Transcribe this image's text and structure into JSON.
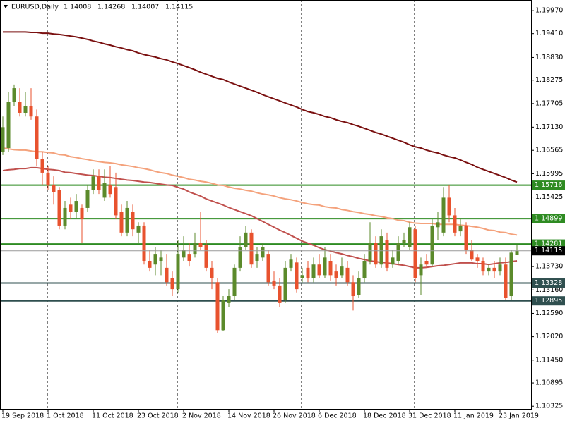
{
  "chart_data": {
    "type": "candlestick",
    "title": "EURUSD,Daily",
    "categories": [
      "19 Sep 2018",
      null,
      null,
      null,
      null,
      null,
      null,
      null,
      "1 Oct 2018",
      null,
      null,
      null,
      null,
      null,
      null,
      null,
      "11 Oct 2018",
      null,
      null,
      null,
      null,
      null,
      null,
      null,
      "23 Oct 2018",
      null,
      null,
      null,
      null,
      null,
      null,
      null,
      "2 Nov 2018",
      null,
      null,
      null,
      null,
      null,
      null,
      null,
      "14 Nov 2018",
      null,
      null,
      null,
      null,
      null,
      null,
      null,
      "26 Nov 2018",
      null,
      null,
      null,
      null,
      null,
      null,
      null,
      "6 Dec 2018",
      null,
      null,
      null,
      null,
      null,
      null,
      null,
      "18 Dec 2018",
      null,
      null,
      null,
      null,
      null,
      null,
      null,
      "31 Dec 2018",
      null,
      null,
      null,
      null,
      null,
      null,
      null,
      "11 Jan 2019",
      null,
      null,
      null,
      null,
      null,
      null,
      null,
      "23 Jan 2019",
      null,
      null,
      null
    ],
    "open": [
      1.1653,
      1.1662,
      1.1774,
      1.1774,
      1.1748,
      1.1765,
      1.1739,
      1.1636,
      1.1602,
      1.1572,
      1.1559,
      1.1473,
      1.1524,
      1.1507,
      1.1516,
      1.1516,
      1.1559,
      1.1593,
      1.1541,
      1.1572,
      1.1567,
      1.1507,
      1.1456,
      1.1507,
      1.1456,
      1.1473,
      1.1387,
      1.1378,
      1.1387,
      1.137,
      1.1344,
      1.1318,
      1.1395,
      1.1404,
      1.1404,
      1.143,
      1.1425,
      1.137,
      1.1335,
      1.1218,
      1.1284,
      1.1301,
      1.137,
      1.1421,
      1.1456,
      1.1387,
      1.1395,
      1.1404,
      1.1339,
      1.1327,
      1.1292,
      1.137,
      1.1383,
      1.1344,
      1.137,
      1.1344,
      1.1378,
      1.1352,
      1.1387,
      1.1361,
      1.1352,
      1.137,
      1.1335,
      1.1304,
      1.1344,
      1.1387,
      1.143,
      1.1378,
      1.1438,
      1.1378,
      1.1387,
      1.143,
      1.1421,
      1.1464,
      1.1352,
      1.1387,
      1.1378,
      1.1469,
      1.1456,
      1.1541,
      1.1498,
      1.1459,
      1.1473,
      1.1413,
      1.1395,
      1.1387,
      1.1361,
      1.137,
      1.1361,
      1.1378,
      1.1301,
      1.14008
    ],
    "high": [
      1.1739,
      1.1799,
      1.1817,
      1.1808,
      1.1799,
      1.1808,
      1.1756,
      1.1653,
      1.1619,
      1.1593,
      1.1567,
      1.1533,
      1.1541,
      1.155,
      1.1524,
      1.1572,
      1.161,
      1.161,
      1.161,
      1.1619,
      1.1602,
      1.1524,
      1.1533,
      1.1524,
      1.1481,
      1.1481,
      1.1413,
      1.1421,
      1.1413,
      1.1404,
      1.1361,
      1.1438,
      1.1447,
      1.143,
      1.1456,
      1.1507,
      1.1438,
      1.1387,
      1.1344,
      1.1301,
      1.1318,
      1.1378,
      1.1447,
      1.1473,
      1.1464,
      1.1421,
      1.143,
      1.1413,
      1.1361,
      1.1344,
      1.1387,
      1.1404,
      1.1395,
      1.137,
      1.1387,
      1.1395,
      1.1404,
      1.1421,
      1.1404,
      1.1378,
      1.1395,
      1.1387,
      1.1352,
      1.1361,
      1.1404,
      1.1481,
      1.1447,
      1.1464,
      1.1456,
      1.1413,
      1.1447,
      1.1456,
      1.1481,
      1.1473,
      1.1395,
      1.1404,
      1.149,
      1.1507,
      1.1567,
      1.1572,
      1.1516,
      1.149,
      1.1481,
      1.1438,
      1.1404,
      1.1395,
      1.1378,
      1.1387,
      1.1395,
      1.1395,
      1.1413,
      1.14268
    ],
    "low": [
      1.1645,
      1.1653,
      1.1765,
      1.1739,
      1.1739,
      1.1731,
      1.1619,
      1.1572,
      1.1559,
      1.1524,
      1.1464,
      1.1464,
      1.149,
      1.149,
      1.143,
      1.1507,
      1.155,
      1.155,
      1.1533,
      1.1541,
      1.149,
      1.1447,
      1.1447,
      1.1447,
      1.143,
      1.1378,
      1.1361,
      1.1352,
      1.1352,
      1.1327,
      1.1301,
      1.131,
      1.1387,
      1.1373,
      1.1395,
      1.1413,
      1.1361,
      1.1318,
      1.1211,
      1.1215,
      1.1275,
      1.1292,
      1.1361,
      1.1413,
      1.137,
      1.137,
      1.1387,
      1.1327,
      1.1318,
      1.1275,
      1.1284,
      1.1361,
      1.131,
      1.1335,
      1.1335,
      1.1335,
      1.1344,
      1.1344,
      1.1339,
      1.1327,
      1.1344,
      1.1327,
      1.1266,
      1.1297,
      1.1335,
      1.1378,
      1.137,
      1.137,
      1.1361,
      1.137,
      1.1378,
      1.1421,
      1.1413,
      1.1335,
      1.1304,
      1.137,
      1.1373,
      1.1438,
      1.1447,
      1.1481,
      1.1447,
      1.1447,
      1.1404,
      1.1387,
      1.137,
      1.1352,
      1.1352,
      1.1344,
      1.1352,
      1.1292,
      1.1292,
      1.14007
    ],
    "close": [
      1.1713,
      1.1774,
      1.1808,
      1.1748,
      1.1765,
      1.1739,
      1.1636,
      1.1602,
      1.1572,
      1.1555,
      1.1473,
      1.1516,
      1.1507,
      1.1533,
      1.149,
      1.1559,
      1.1593,
      1.1559,
      1.1576,
      1.155,
      1.1498,
      1.1456,
      1.1516,
      1.1464,
      1.1473,
      1.1387,
      1.137,
      1.1404,
      1.1395,
      1.1335,
      1.1318,
      1.1404,
      1.1413,
      1.1387,
      1.143,
      1.1421,
      1.137,
      1.1344,
      1.1218,
      1.1292,
      1.1301,
      1.137,
      1.1421,
      1.1456,
      1.1378,
      1.1404,
      1.1421,
      1.1335,
      1.1327,
      1.1284,
      1.137,
      1.139,
      1.1318,
      1.1352,
      1.1344,
      1.1378,
      1.1352,
      1.1395,
      1.1352,
      1.1344,
      1.1373,
      1.1335,
      1.1301,
      1.1344,
      1.1387,
      1.143,
      1.1378,
      1.1447,
      1.137,
      1.1395,
      1.143,
      1.1438,
      1.1469,
      1.1344,
      1.1378,
      1.1378,
      1.1473,
      1.1481,
      1.1541,
      1.1498,
      1.1456,
      1.1473,
      1.1413,
      1.139,
      1.1387,
      1.1361,
      1.137,
      1.1361,
      1.1378,
      1.1297,
      1.1407,
      1.14115
    ],
    "up_color": "#5b8a2b",
    "down_color": "#e8522e",
    "series": [
      {
        "color": "#7a1010",
        "values": [
          1.1945,
          1.1945,
          1.1945,
          1.1945,
          1.1945,
          1.1944,
          1.1944,
          1.1942,
          1.1942,
          1.194,
          1.1939,
          1.1937,
          1.1935,
          1.1933,
          1.193,
          1.1927,
          1.1923,
          1.192,
          1.1916,
          1.1913,
          1.1909,
          1.1906,
          1.1902,
          1.1899,
          1.1894,
          1.189,
          1.1887,
          1.1884,
          1.188,
          1.1877,
          1.1872,
          1.1868,
          1.1863,
          1.1858,
          1.1853,
          1.1847,
          1.1842,
          1.1837,
          1.1832,
          1.1829,
          1.1823,
          1.1818,
          1.1813,
          1.1808,
          1.1803,
          1.1798,
          1.1792,
          1.1787,
          1.1782,
          1.1777,
          1.1772,
          1.1767,
          1.1762,
          1.1756,
          1.1751,
          1.1748,
          1.1744,
          1.1739,
          1.1736,
          1.1731,
          1.1727,
          1.1724,
          1.1719,
          1.1715,
          1.171,
          1.1705,
          1.17,
          1.1696,
          1.1691,
          1.1686,
          1.1681,
          1.1676,
          1.167,
          1.1665,
          1.1662,
          1.1657,
          1.1653,
          1.165,
          1.1645,
          1.1641,
          1.1638,
          1.1633,
          1.1627,
          1.1622,
          1.1615,
          1.161,
          1.1605,
          1.16,
          1.1595,
          1.159,
          1.1584,
          1.1579
        ]
      },
      {
        "color": "#f4a27c",
        "values": [
          1.1662,
          1.166,
          1.1658,
          1.1657,
          1.1657,
          1.1655,
          1.1653,
          1.1653,
          1.1651,
          1.165,
          1.1646,
          1.1645,
          1.1641,
          1.1639,
          1.1636,
          1.1634,
          1.1631,
          1.1629,
          1.1627,
          1.1626,
          1.1624,
          1.1621,
          1.1619,
          1.1617,
          1.1614,
          1.1612,
          1.1609,
          1.1605,
          1.1602,
          1.16,
          1.1596,
          1.1593,
          1.159,
          1.1586,
          1.1584,
          1.1581,
          1.1579,
          1.1576,
          1.1572,
          1.1571,
          1.1567,
          1.1564,
          1.1562,
          1.1559,
          1.1557,
          1.1553,
          1.155,
          1.1548,
          1.1545,
          1.1541,
          1.1538,
          1.1536,
          1.1533,
          1.1529,
          1.1526,
          1.1524,
          1.1523,
          1.1519,
          1.1517,
          1.1516,
          1.1512,
          1.151,
          1.1507,
          1.1505,
          1.1502,
          1.15,
          1.1497,
          1.1495,
          1.1492,
          1.149,
          1.1486,
          1.1485,
          1.1481,
          1.1479,
          1.1478,
          1.1478,
          1.1478,
          1.1476,
          1.1476,
          1.1476,
          1.1476,
          1.1474,
          1.1473,
          1.1471,
          1.1469,
          1.1466,
          1.1462,
          1.1461,
          1.1457,
          1.1456,
          1.1452,
          1.145
        ]
      },
      {
        "color": "#c0504d",
        "values": [
          1.1607,
          1.1609,
          1.161,
          1.1612,
          1.1612,
          1.1614,
          1.1614,
          1.1612,
          1.161,
          1.1609,
          1.1607,
          1.1603,
          1.1602,
          1.16,
          1.1598,
          1.1596,
          1.1595,
          1.1593,
          1.1591,
          1.159,
          1.1588,
          1.1586,
          1.1584,
          1.1583,
          1.1581,
          1.1579,
          1.1578,
          1.1576,
          1.1574,
          1.1572,
          1.1571,
          1.1566,
          1.1562,
          1.1555,
          1.155,
          1.1545,
          1.1538,
          1.1533,
          1.1528,
          1.1523,
          1.1517,
          1.1512,
          1.1507,
          1.1502,
          1.1497,
          1.149,
          1.1483,
          1.1476,
          1.1469,
          1.1462,
          1.1456,
          1.1449,
          1.1442,
          1.1435,
          1.143,
          1.1425,
          1.1419,
          1.1414,
          1.1411,
          1.1407,
          1.1404,
          1.14,
          1.1397,
          1.1393,
          1.139,
          1.1387,
          1.1385,
          1.1383,
          1.1382,
          1.138,
          1.1378,
          1.1376,
          1.1373,
          1.137,
          1.137,
          1.1371,
          1.1373,
          1.1375,
          1.1376,
          1.1378,
          1.138,
          1.1382,
          1.1382,
          1.1382,
          1.138,
          1.138,
          1.1378,
          1.138,
          1.1382,
          1.1383,
          1.1385,
          1.1387
        ]
      }
    ],
    "levels": [
      {
        "value": 1.15716,
        "color": "#2e8b22"
      },
      {
        "value": 1.14899,
        "color": "#2e8b22"
      },
      {
        "value": 1.14281,
        "color": "#2e8b22"
      },
      {
        "value": 1.13328,
        "color": "#2f4f4f"
      },
      {
        "value": 1.12895,
        "color": "#2f4f4f"
      }
    ],
    "ylim": [
      1.1026,
      1.2023
    ],
    "yticks": [
      {
        "value": 1.1997,
        "label": "1.19970"
      },
      {
        "value": 1.1941,
        "label": "1.19410"
      },
      {
        "value": 1.1883,
        "label": "1.18830"
      },
      1.18275,
      1.17705,
      {
        "value": 1.1713,
        "label": "1.17130"
      },
      1.16565,
      1.15995,
      1.15425,
      {
        "value": 1.1373,
        "label": "1.13730"
      },
      {
        "value": 1.1316,
        "label": "1.13160"
      },
      {
        "value": 1.1259,
        "label": "1.12590"
      },
      {
        "value": 1.1202,
        "label": "1.12020"
      },
      {
        "value": 1.1145,
        "label": "1.11450"
      },
      1.10895,
      1.10325
    ],
    "grid": false
  }
}
